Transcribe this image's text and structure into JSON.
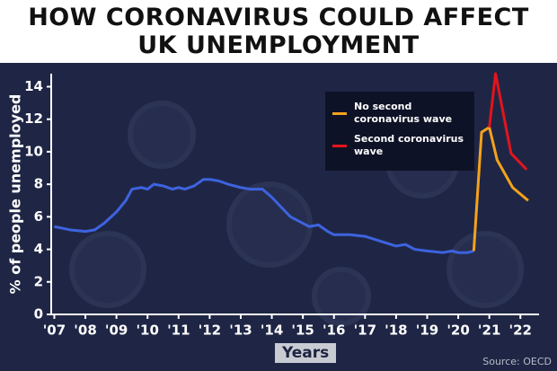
{
  "chart_data": {
    "type": "line",
    "title": "HOW CORONAVIRUS COULD AFFECT UK UNEMPLOYMENT",
    "y_label": "% of people unemployed",
    "x_label": "Years",
    "source": "Source: OECD",
    "xlim": [
      2006.9,
      2022.6
    ],
    "xticks": [
      {
        "value": 2007,
        "label": "'07"
      },
      {
        "value": 2008,
        "label": "'08"
      },
      {
        "value": 2009,
        "label": "'09"
      },
      {
        "value": 2010,
        "label": "'10"
      },
      {
        "value": 2011,
        "label": "'11"
      },
      {
        "value": 2012,
        "label": "'12"
      },
      {
        "value": 2013,
        "label": "'13"
      },
      {
        "value": 2014,
        "label": "'14"
      },
      {
        "value": 2015,
        "label": "'15"
      },
      {
        "value": 2016,
        "label": "'16"
      },
      {
        "value": 2017,
        "label": "'17"
      },
      {
        "value": 2018,
        "label": "'18"
      },
      {
        "value": 2019,
        "label": "'19"
      },
      {
        "value": 2020,
        "label": "'20"
      },
      {
        "value": 2021,
        "label": "'21"
      },
      {
        "value": 2022,
        "label": "'22"
      }
    ],
    "ylim": [
      0,
      14.8
    ],
    "yticks": [
      0,
      2,
      4,
      6,
      8,
      10,
      12,
      14
    ],
    "series": [
      {
        "color": "#3d63e0",
        "x": [
          2007,
          2007.5,
          2008,
          2008.3,
          2008.6,
          2009,
          2009.3,
          2009.5,
          2009.8,
          2010,
          2010.2,
          2010.5,
          2010.8,
          2011,
          2011.2,
          2011.5,
          2011.8,
          2012,
          2012.3,
          2012.6,
          2013,
          2013.3,
          2013.7,
          2014,
          2014.3,
          2014.6,
          2015,
          2015.2,
          2015.5,
          2015.8,
          2016,
          2016.5,
          2017,
          2017.5,
          2018,
          2018.3,
          2018.6,
          2019,
          2019.5,
          2019.8,
          2020,
          2020.3,
          2020.5
        ],
        "values": [
          5.4,
          5.2,
          5.1,
          5.2,
          5.6,
          6.3,
          7.0,
          7.7,
          7.8,
          7.7,
          8.0,
          7.9,
          7.7,
          7.8,
          7.7,
          7.9,
          8.3,
          8.3,
          8.2,
          8.0,
          7.8,
          7.7,
          7.7,
          7.2,
          6.6,
          6.0,
          5.6,
          5.4,
          5.5,
          5.1,
          4.9,
          4.9,
          4.8,
          4.5,
          4.2,
          4.3,
          4.0,
          3.9,
          3.8,
          3.9,
          3.8,
          3.8,
          3.9
        ]
      },
      {
        "name": "No second coronavirus wave",
        "color": "#f5a21b",
        "x": [
          2020.5,
          2020.75,
          2021,
          2021.25,
          2021.75,
          2022.25
        ],
        "values": [
          3.9,
          11.2,
          11.5,
          9.5,
          7.8,
          7.0
        ]
      },
      {
        "name": "Second coronavirus wave",
        "color": "#e3141c",
        "x": [
          2021,
          2021.2,
          2021.7,
          2022.2
        ],
        "values": [
          11.5,
          14.8,
          9.9,
          8.9
        ]
      }
    ]
  }
}
